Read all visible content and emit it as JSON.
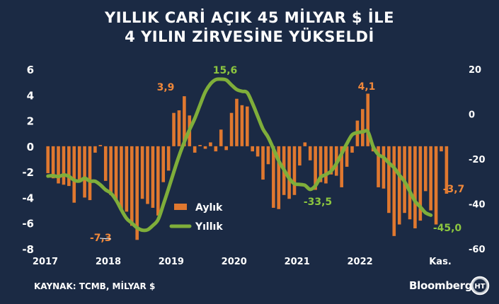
{
  "header": {
    "title_line1": "YILLIK CARİ AÇIK 45 MİLYAR $ İLE",
    "title_line2": "4 YILIN ZİRVESİNE YÜKSELDİ"
  },
  "footer": {
    "source": "KAYNAK:  TCMB, MİLYAR $",
    "brand": "Bloomberg",
    "logo_text": "HT"
  },
  "colors": {
    "background": "#1b2a44",
    "bar": "#e0782f",
    "line": "#7fae3a",
    "text": "#ffffff",
    "bar_label": "#f0883a",
    "line_label": "#8cc63f"
  },
  "chart_data": {
    "type": "bar+line",
    "x_tick_labels": [
      "2017",
      "2018",
      "2019",
      "2020",
      "2021",
      "2022",
      "Kas."
    ],
    "left_axis": {
      "ylim": [
        -8,
        6
      ],
      "ticks": [
        "6",
        "4",
        "2",
        "0",
        "-2",
        "-4",
        "-6",
        "-8"
      ]
    },
    "right_axis": {
      "ylim": [
        -60,
        20
      ],
      "ticks": [
        "20",
        "0",
        "-20",
        "-40",
        "-60"
      ]
    },
    "legend": {
      "position": "center-bottom",
      "items": [
        {
          "label": "Aylık",
          "series": "monthly"
        },
        {
          "label": "Yıllık",
          "series": "annual"
        }
      ]
    },
    "series": [
      {
        "name": "Aylık",
        "type": "bar",
        "axis": "left",
        "values": [
          -2.1,
          -2.5,
          -2.9,
          -3.0,
          -3.1,
          -4.4,
          -2.8,
          -4.0,
          -4.2,
          -0.5,
          0.1,
          -2.7,
          -3.8,
          -4.2,
          -5.0,
          -5.1,
          -6.2,
          -7.3,
          -4.1,
          -4.5,
          -4.8,
          -5.4,
          -2.8,
          -1.9,
          2.6,
          2.8,
          3.9,
          2.4,
          -0.5,
          0.1,
          -0.2,
          0.3,
          -0.4,
          1.3,
          -0.3,
          2.6,
          3.7,
          3.2,
          3.1,
          -0.4,
          -0.8,
          -2.6,
          -1.4,
          -4.8,
          -4.9,
          -3.8,
          -4.1,
          -3.8,
          -1.5,
          0.3,
          -1.1,
          -3.4,
          -2.8,
          -2.9,
          -2.2,
          -2.3,
          -3.2,
          -1.6,
          -0.5,
          2.0,
          2.9,
          4.1,
          -0.4,
          -3.2,
          -3.3,
          -5.2,
          -7.0,
          -6.1,
          -5.2,
          -5.7,
          -6.4,
          -5.8,
          -3.5,
          -5.0,
          -6.1,
          -0.4,
          -3.7
        ],
        "data_labels": [
          {
            "index": 17,
            "text": "-7,3"
          },
          {
            "index": 26,
            "text": "3,9"
          },
          {
            "index": 61,
            "text": "4,1"
          },
          {
            "index": 76,
            "text": "-3,7"
          }
        ]
      },
      {
        "name": "Yıllık",
        "type": "line",
        "axis": "right",
        "values": [
          -27.6,
          -27.4,
          -27.8,
          -27.1,
          -27.7,
          -29.4,
          -29.8,
          -28.5,
          -29.8,
          -29.9,
          -31.5,
          -33.7,
          -35.2,
          -38.3,
          -42.6,
          -46.5,
          -48.5,
          -50.6,
          -51.7,
          -51.5,
          -49.6,
          -47.0,
          -40.3,
          -33.2,
          -25.7,
          -18.6,
          -12.4,
          -6.9,
          -1.9,
          4.1,
          9.9,
          13.5,
          15.4,
          15.6,
          15.2,
          13.0,
          11.0,
          10.2,
          9.6,
          4.8,
          -0.9,
          -6.6,
          -10.3,
          -15.4,
          -20.8,
          -24.7,
          -28.6,
          -31.0,
          -31.3,
          -31.7,
          -33.5,
          -31.9,
          -28.1,
          -26.9,
          -25.3,
          -22.0,
          -17.6,
          -13.1,
          -9.2,
          -8.2,
          -7.9,
          -7.8,
          -14.4,
          -18.0,
          -19.3,
          -21.7,
          -23.9,
          -27.1,
          -30.0,
          -34.4,
          -38.8,
          -41.3,
          -43.9,
          -45.0
        ],
        "data_labels": [
          {
            "index": 33,
            "text": "15,6"
          },
          {
            "index": 50,
            "text": "-33,5"
          },
          {
            "index": 73,
            "text": "-45,0"
          }
        ]
      }
    ]
  }
}
